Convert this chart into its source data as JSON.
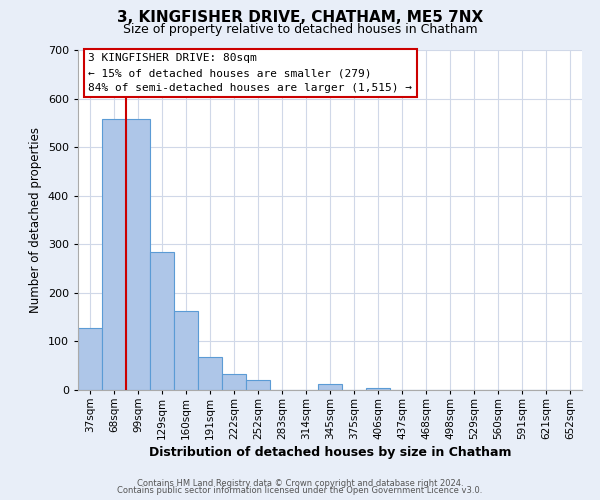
{
  "title": "3, KINGFISHER DRIVE, CHATHAM, ME5 7NX",
  "subtitle": "Size of property relative to detached houses in Chatham",
  "xlabel": "Distribution of detached houses by size in Chatham",
  "ylabel": "Number of detached properties",
  "categories": [
    "37sqm",
    "68sqm",
    "99sqm",
    "129sqm",
    "160sqm",
    "191sqm",
    "222sqm",
    "252sqm",
    "283sqm",
    "314sqm",
    "345sqm",
    "375sqm",
    "406sqm",
    "437sqm",
    "468sqm",
    "498sqm",
    "529sqm",
    "560sqm",
    "591sqm",
    "621sqm",
    "652sqm"
  ],
  "values": [
    128,
    557,
    557,
    285,
    163,
    68,
    33,
    20,
    0,
    0,
    12,
    0,
    5,
    0,
    0,
    0,
    0,
    0,
    0,
    0,
    0
  ],
  "bar_color": "#aec6e8",
  "bar_edge_color": "#5b9bd5",
  "vline_color": "#cc0000",
  "vline_pos": 1.5,
  "ylim": [
    0,
    700
  ],
  "yticks": [
    0,
    100,
    200,
    300,
    400,
    500,
    600,
    700
  ],
  "annotation_title": "3 KINGFISHER DRIVE: 80sqm",
  "annotation_line1": "← 15% of detached houses are smaller (279)",
  "annotation_line2": "84% of semi-detached houses are larger (1,515) →",
  "annotation_box_color": "#ffffff",
  "annotation_box_edge": "#cc0000",
  "footer1": "Contains HM Land Registry data © Crown copyright and database right 2024.",
  "footer2": "Contains public sector information licensed under the Open Government Licence v3.0.",
  "fig_bg_color": "#e8eef8",
  "plot_bg_color": "#ffffff",
  "grid_color": "#d0d8e8",
  "title_fontsize": 11,
  "subtitle_fontsize": 9
}
